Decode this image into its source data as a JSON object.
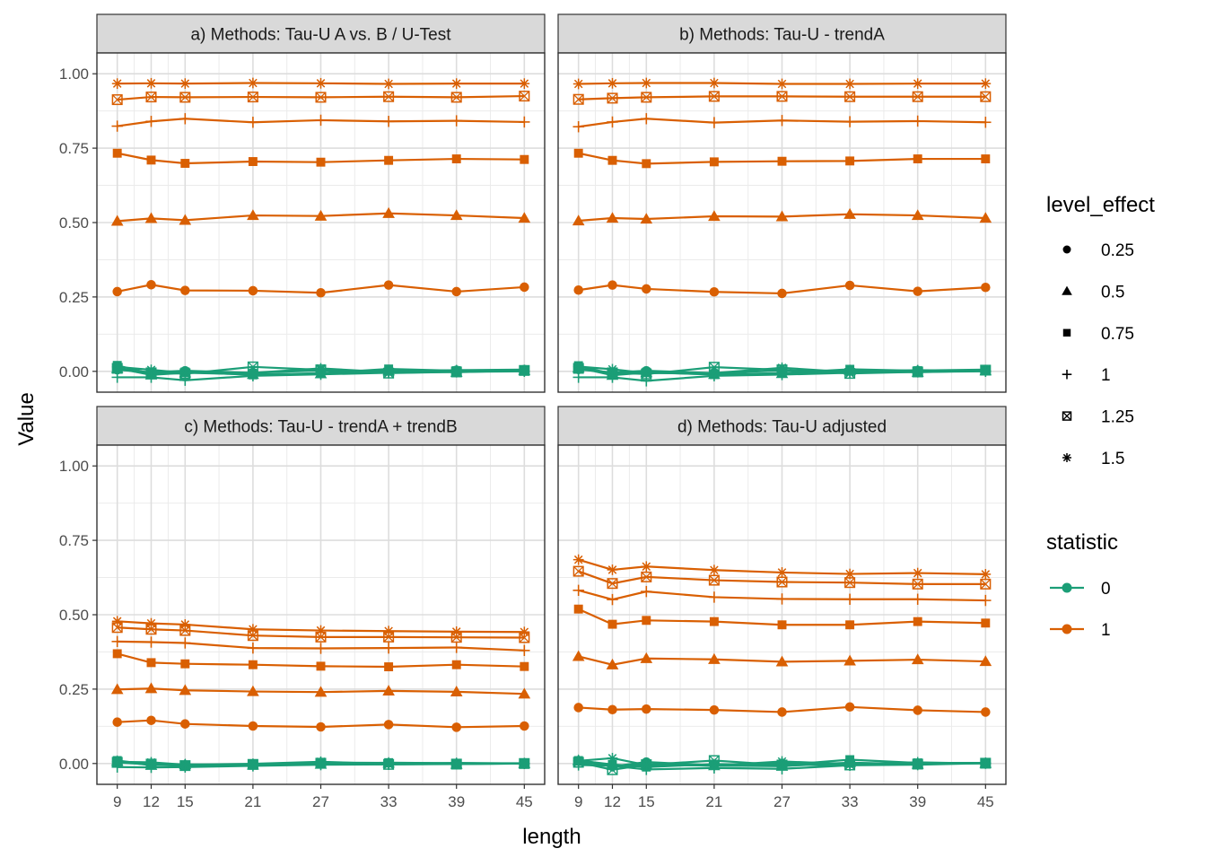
{
  "chart_data": {
    "type": "line",
    "ylabel": "Value",
    "xlabel": "length",
    "ylim": [
      -0.07,
      1.07
    ],
    "xlim": [
      7.2,
      46.8
    ],
    "x": [
      9,
      12,
      15,
      21,
      27,
      33,
      39,
      45
    ],
    "x_ticks": [
      "9",
      "12",
      "15",
      "21",
      "27",
      "33",
      "39",
      "45"
    ],
    "y_ticks": [
      "0.00",
      "0.25",
      "0.50",
      "0.75",
      "1.00"
    ],
    "grid": true,
    "legend_shape": {
      "title": "level_effect",
      "entries": [
        {
          "label": "0.25",
          "shape": "circle"
        },
        {
          "label": "0.5",
          "shape": "triangle"
        },
        {
          "label": "0.75",
          "shape": "square"
        },
        {
          "label": "1",
          "shape": "plus"
        },
        {
          "label": "1.25",
          "shape": "boxed-x"
        },
        {
          "label": "1.5",
          "shape": "asterisk"
        }
      ]
    },
    "legend_color": {
      "title": "statistic",
      "entries": [
        {
          "label": "0",
          "color": "#1B9E77"
        },
        {
          "label": "1",
          "color": "#D95F02"
        }
      ]
    },
    "legend_placement": "right",
    "panels": [
      {
        "title": "a) Methods: Tau-U A vs. B / U-Test",
        "series": [
          {
            "level": "0.25",
            "statistic": "1",
            "values": [
              0.268,
              0.291,
              0.272,
              0.271,
              0.264,
              0.29,
              0.268,
              0.283
            ]
          },
          {
            "level": "0.5",
            "statistic": "1",
            "values": [
              0.505,
              0.514,
              0.508,
              0.524,
              0.522,
              0.531,
              0.524,
              0.515
            ]
          },
          {
            "level": "0.75",
            "statistic": "1",
            "values": [
              0.733,
              0.71,
              0.699,
              0.705,
              0.703,
              0.709,
              0.714,
              0.712
            ]
          },
          {
            "level": "1",
            "statistic": "1",
            "values": [
              0.824,
              0.84,
              0.849,
              0.837,
              0.844,
              0.84,
              0.842,
              0.838
            ]
          },
          {
            "level": "1.25",
            "statistic": "1",
            "values": [
              0.913,
              0.922,
              0.921,
              0.922,
              0.921,
              0.923,
              0.921,
              0.925
            ]
          },
          {
            "level": "1.5",
            "statistic": "1",
            "values": [
              0.967,
              0.968,
              0.967,
              0.969,
              0.968,
              0.966,
              0.967,
              0.967
            ]
          },
          {
            "level": "0.25",
            "statistic": "0",
            "values": [
              0.005,
              -0.003,
              0.002,
              -0.005,
              0.003,
              0.0,
              0.004,
              0.006
            ]
          },
          {
            "level": "0.5",
            "statistic": "0",
            "values": [
              0.01,
              -0.012,
              -0.005,
              -0.01,
              -0.008,
              0.002,
              -0.003,
              0.003
            ]
          },
          {
            "level": "0.75",
            "statistic": "0",
            "values": [
              0.02,
              -0.008,
              -0.002,
              -0.012,
              -0.006,
              0.008,
              0.002,
              0.004
            ]
          },
          {
            "level": "1",
            "statistic": "0",
            "values": [
              -0.02,
              -0.02,
              -0.03,
              -0.015,
              -0.01,
              -0.005,
              -0.002,
              0.0
            ]
          },
          {
            "level": "1.25",
            "statistic": "0",
            "values": [
              0.01,
              -0.005,
              -0.008,
              0.015,
              0.005,
              -0.006,
              -0.002,
              0.003
            ]
          },
          {
            "level": "1.5",
            "statistic": "0",
            "values": [
              0.015,
              0.005,
              -0.005,
              -0.005,
              0.01,
              -0.003,
              0.004,
              0.002
            ]
          }
        ]
      },
      {
        "title": "b) Methods: Tau-U - trendA",
        "series": [
          {
            "level": "0.25",
            "statistic": "1",
            "values": [
              0.273,
              0.29,
              0.277,
              0.267,
              0.262,
              0.289,
              0.269,
              0.282
            ]
          },
          {
            "level": "0.5",
            "statistic": "1",
            "values": [
              0.506,
              0.515,
              0.512,
              0.521,
              0.52,
              0.528,
              0.524,
              0.515
            ]
          },
          {
            "level": "0.75",
            "statistic": "1",
            "values": [
              0.733,
              0.709,
              0.698,
              0.704,
              0.706,
              0.707,
              0.714,
              0.714
            ]
          },
          {
            "level": "1",
            "statistic": "1",
            "values": [
              0.822,
              0.838,
              0.849,
              0.836,
              0.843,
              0.839,
              0.841,
              0.837
            ]
          },
          {
            "level": "1.25",
            "statistic": "1",
            "values": [
              0.914,
              0.918,
              0.921,
              0.924,
              0.924,
              0.923,
              0.923,
              0.923
            ]
          },
          {
            "level": "1.5",
            "statistic": "1",
            "values": [
              0.966,
              0.968,
              0.969,
              0.969,
              0.966,
              0.966,
              0.967,
              0.967
            ]
          },
          {
            "level": "0.25",
            "statistic": "0",
            "values": [
              0.006,
              -0.004,
              0.002,
              -0.006,
              0.003,
              0.001,
              0.003,
              0.006
            ]
          },
          {
            "level": "0.5",
            "statistic": "0",
            "values": [
              0.012,
              -0.013,
              -0.004,
              -0.01,
              -0.007,
              0.003,
              -0.003,
              0.002
            ]
          },
          {
            "level": "0.75",
            "statistic": "0",
            "values": [
              0.019,
              -0.009,
              -0.003,
              -0.011,
              -0.006,
              0.007,
              0.002,
              0.003
            ]
          },
          {
            "level": "1",
            "statistic": "0",
            "values": [
              -0.02,
              -0.02,
              -0.032,
              -0.015,
              -0.011,
              -0.005,
              -0.002,
              0.0
            ]
          },
          {
            "level": "1.25",
            "statistic": "0",
            "values": [
              0.01,
              -0.005,
              -0.009,
              0.014,
              0.005,
              -0.007,
              -0.002,
              0.004
            ]
          },
          {
            "level": "1.5",
            "statistic": "0",
            "values": [
              0.016,
              0.007,
              -0.006,
              -0.006,
              0.012,
              -0.003,
              0.004,
              0.002
            ]
          }
        ]
      },
      {
        "title": "c) Methods: Tau-U - trendA + trendB",
        "series": [
          {
            "level": "0.25",
            "statistic": "1",
            "values": [
              0.139,
              0.145,
              0.133,
              0.126,
              0.123,
              0.131,
              0.122,
              0.126
            ]
          },
          {
            "level": "0.5",
            "statistic": "1",
            "values": [
              0.249,
              0.252,
              0.246,
              0.242,
              0.24,
              0.244,
              0.241,
              0.234
            ]
          },
          {
            "level": "0.75",
            "statistic": "1",
            "values": [
              0.369,
              0.339,
              0.335,
              0.332,
              0.327,
              0.325,
              0.332,
              0.326
            ]
          },
          {
            "level": "1",
            "statistic": "1",
            "values": [
              0.41,
              0.408,
              0.405,
              0.388,
              0.387,
              0.388,
              0.39,
              0.38
            ]
          },
          {
            "level": "1.25",
            "statistic": "1",
            "values": [
              0.457,
              0.451,
              0.447,
              0.43,
              0.425,
              0.425,
              0.424,
              0.423
            ]
          },
          {
            "level": "1.5",
            "statistic": "1",
            "values": [
              0.478,
              0.471,
              0.467,
              0.451,
              0.447,
              0.445,
              0.443,
              0.442
            ]
          },
          {
            "level": "0.25",
            "statistic": "0",
            "values": [
              0.003,
              -0.003,
              -0.006,
              -0.002,
              0.003,
              0.002,
              0.001,
              0.0
            ]
          },
          {
            "level": "0.5",
            "statistic": "0",
            "values": [
              0.008,
              -0.006,
              -0.003,
              -0.005,
              -0.002,
              0.002,
              -0.002,
              0.0
            ]
          },
          {
            "level": "0.75",
            "statistic": "0",
            "values": [
              0.01,
              -0.004,
              -0.008,
              -0.006,
              -0.002,
              0.003,
              0.001,
              0.001
            ]
          },
          {
            "level": "1",
            "statistic": "0",
            "values": [
              -0.012,
              -0.013,
              -0.012,
              -0.008,
              -0.004,
              -0.003,
              -0.001,
              0.0
            ]
          },
          {
            "level": "1.25",
            "statistic": "0",
            "values": [
              0.004,
              -0.002,
              -0.007,
              -0.003,
              0.001,
              -0.003,
              -0.002,
              0.0
            ]
          },
          {
            "level": "1.5",
            "statistic": "0",
            "values": [
              0.006,
              0.004,
              -0.004,
              -0.001,
              0.006,
              -0.002,
              0.002,
              0.0
            ]
          }
        ]
      },
      {
        "title": "d) Methods: Tau-U adjusted",
        "series": [
          {
            "level": "0.25",
            "statistic": "1",
            "values": [
              0.188,
              0.181,
              0.183,
              0.18,
              0.173,
              0.19,
              0.179,
              0.173
            ]
          },
          {
            "level": "0.5",
            "statistic": "1",
            "values": [
              0.36,
              0.332,
              0.353,
              0.35,
              0.342,
              0.345,
              0.349,
              0.343
            ]
          },
          {
            "level": "0.75",
            "statistic": "1",
            "values": [
              0.519,
              0.468,
              0.481,
              0.477,
              0.466,
              0.466,
              0.477,
              0.472
            ]
          },
          {
            "level": "1",
            "statistic": "1",
            "values": [
              0.582,
              0.551,
              0.578,
              0.559,
              0.553,
              0.552,
              0.552,
              0.548
            ]
          },
          {
            "level": "1.25",
            "statistic": "1",
            "values": [
              0.646,
              0.605,
              0.627,
              0.616,
              0.61,
              0.608,
              0.603,
              0.603
            ]
          },
          {
            "level": "1.5",
            "statistic": "1",
            "values": [
              0.685,
              0.651,
              0.662,
              0.65,
              0.642,
              0.637,
              0.64,
              0.636
            ]
          },
          {
            "level": "0.25",
            "statistic": "0",
            "values": [
              0.008,
              -0.01,
              0.005,
              -0.006,
              0.001,
              0.001,
              0.0,
              0.002
            ]
          },
          {
            "level": "0.5",
            "statistic": "0",
            "values": [
              0.011,
              -0.006,
              -0.004,
              -0.007,
              -0.009,
              0.003,
              -0.002,
              0.001
            ]
          },
          {
            "level": "0.75",
            "statistic": "0",
            "values": [
              0.01,
              -0.003,
              -0.012,
              -0.002,
              -0.005,
              0.013,
              0.002,
              0.002
            ]
          },
          {
            "level": "1",
            "statistic": "0",
            "values": [
              -0.005,
              -0.008,
              -0.02,
              -0.015,
              -0.018,
              -0.006,
              -0.004,
              0.001
            ]
          },
          {
            "level": "1.25",
            "statistic": "0",
            "values": [
              0.004,
              -0.021,
              -0.004,
              0.01,
              -0.005,
              -0.005,
              -0.002,
              0.001
            ]
          },
          {
            "level": "1.5",
            "statistic": "0",
            "values": [
              0.009,
              0.018,
              -0.005,
              -0.007,
              0.007,
              -0.002,
              0.004,
              0.0
            ]
          }
        ]
      }
    ]
  }
}
